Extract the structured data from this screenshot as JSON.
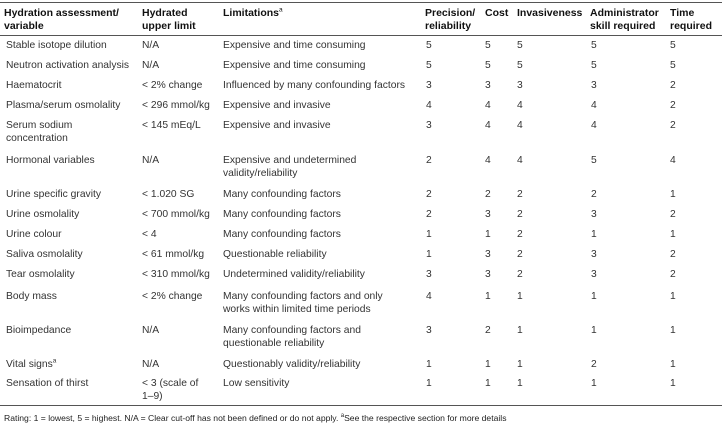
{
  "table": {
    "headers": {
      "assessment": "Hydration assessment/\nvariable",
      "upper_limit": "Hydrated\nupper limit",
      "limitations": "Limitations",
      "limitations_marker": "a",
      "precision": "Precision/\nreliability",
      "cost": "Cost",
      "invasiveness": "Invasiveness",
      "skill": "Administrator\nskill required",
      "time": "Time\nrequired"
    },
    "rows": [
      {
        "variable": "Stable isotope dilution",
        "marker": "",
        "limit": "N/A",
        "limitation": "Expensive and time consuming",
        "precision": "5",
        "cost": "5",
        "invasiveness": "5",
        "skill": "5",
        "time": "5"
      },
      {
        "variable": "Neutron activation analysis",
        "marker": "",
        "limit": "N/A",
        "limitation": "Expensive and time consuming",
        "precision": "5",
        "cost": "5",
        "invasiveness": "5",
        "skill": "5",
        "time": "5"
      },
      {
        "variable": "Haematocrit",
        "marker": "",
        "limit": "< 2% change",
        "limitation": "Influenced by many confounding factors",
        "precision": "3",
        "cost": "3",
        "invasiveness": "3",
        "skill": "3",
        "time": "2"
      },
      {
        "variable": "Plasma/serum osmolality",
        "marker": "",
        "limit": "< 296 mmol/kg",
        "limitation": "Expensive and invasive",
        "precision": "4",
        "cost": "4",
        "invasiveness": "4",
        "skill": "4",
        "time": "2"
      },
      {
        "variable": "Serum sodium\nconcentration",
        "marker": "",
        "limit": "< 145 mEq/L",
        "limitation": "Expensive and invasive",
        "precision": "3",
        "cost": "4",
        "invasiveness": "4",
        "skill": "4",
        "time": "2"
      },
      {
        "variable": "Hormonal variables",
        "marker": "",
        "limit": "N/A",
        "limitation": "Expensive and undetermined\nvalidity/reliability",
        "precision": "2",
        "cost": "4",
        "invasiveness": "4",
        "skill": "5",
        "time": "4"
      },
      {
        "variable": "Urine specific gravity",
        "marker": "",
        "limit": "< 1.020 SG",
        "limitation": "Many confounding factors",
        "precision": "2",
        "cost": "2",
        "invasiveness": "2",
        "skill": "2",
        "time": "1"
      },
      {
        "variable": "Urine osmolality",
        "marker": "",
        "limit": "< 700 mmol/kg",
        "limitation": "Many confounding factors",
        "precision": "2",
        "cost": "3",
        "invasiveness": "2",
        "skill": "3",
        "time": "2"
      },
      {
        "variable": "Urine colour",
        "marker": "",
        "limit": "< 4",
        "limitation": "Many confounding factors",
        "precision": "1",
        "cost": "1",
        "invasiveness": "2",
        "skill": "1",
        "time": "1"
      },
      {
        "variable": "Saliva osmolality",
        "marker": "",
        "limit": "< 61 mmol/kg",
        "limitation": "Questionable reliability",
        "precision": "1",
        "cost": "3",
        "invasiveness": "2",
        "skill": "3",
        "time": "2"
      },
      {
        "variable": "Tear osmolality",
        "marker": "",
        "limit": "< 310 mmol/kg",
        "limitation": "Undetermined validity/reliability",
        "precision": "3",
        "cost": "3",
        "invasiveness": "2",
        "skill": "3",
        "time": "2"
      },
      {
        "variable": "Body mass",
        "marker": "",
        "limit": "< 2% change",
        "limitation": "Many confounding factors and only\nworks within limited time periods",
        "precision": "4",
        "cost": "1",
        "invasiveness": "1",
        "skill": "1",
        "time": "1"
      },
      {
        "variable": "Bioimpedance",
        "marker": "",
        "limit": "N/A",
        "limitation": "Many confounding factors and\nquestionable reliability",
        "precision": "3",
        "cost": "2",
        "invasiveness": "1",
        "skill": "1",
        "time": "1"
      },
      {
        "variable": "Vital signs",
        "marker": "a",
        "limit": "N/A",
        "limitation": "Questionably validity/reliability",
        "precision": "1",
        "cost": "1",
        "invasiveness": "1",
        "skill": "2",
        "time": "1"
      },
      {
        "variable": "Sensation of thirst",
        "marker": "",
        "limit": "< 3 (scale of\n1–9)",
        "limitation": "Low sensitivity",
        "precision": "1",
        "cost": "1",
        "invasiveness": "1",
        "skill": "1",
        "time": "1"
      }
    ]
  },
  "footnote": {
    "text": "Rating: 1 = lowest, 5 = highest. N/A = Clear cut-off has not been defined or do not apply. ",
    "marker": "a",
    "marker_text": "See the respective section for more details"
  }
}
